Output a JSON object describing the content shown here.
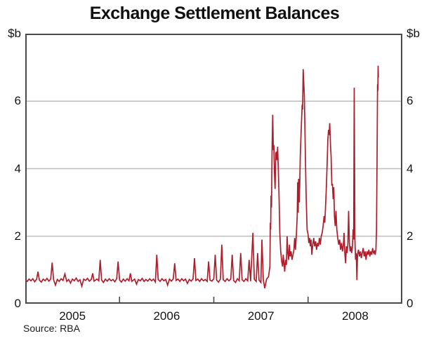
{
  "chart_data": {
    "type": "line",
    "title": "Exchange Settlement Balances",
    "unit_left": "$b",
    "unit_right": "$b",
    "source": "Source: RBA",
    "x_range": [
      2005.0,
      2009.0
    ],
    "ylim": [
      0,
      8
    ],
    "y_ticks": [
      0,
      2,
      4,
      6
    ],
    "x_year_boundary_ticks": [
      2006,
      2007,
      2008
    ],
    "x_tick_labels": [
      {
        "label": "2005",
        "x": 2005.5
      },
      {
        "label": "2006",
        "x": 2006.5
      },
      {
        "label": "2007",
        "x": 2007.5
      },
      {
        "label": "2008",
        "x": 2008.5
      }
    ],
    "grid_on": true,
    "legend": "none",
    "line_color": "#b01e2c",
    "grid_color": "#bdbdbd",
    "frame_color": "#4a4a4a",
    "series": [
      {
        "name": "Exchange Settlement balances ($b, daily)",
        "points": [
          [
            2005.0,
            0.72
          ],
          [
            2005.02,
            0.66
          ],
          [
            2005.04,
            0.73
          ],
          [
            2005.06,
            0.68
          ],
          [
            2005.08,
            0.74
          ],
          [
            2005.1,
            0.65
          ],
          [
            2005.12,
            0.72
          ],
          [
            2005.135,
            0.95
          ],
          [
            2005.15,
            0.7
          ],
          [
            2005.17,
            0.64
          ],
          [
            2005.19,
            0.73
          ],
          [
            2005.21,
            0.68
          ],
          [
            2005.23,
            0.75
          ],
          [
            2005.25,
            0.67
          ],
          [
            2005.27,
            0.73
          ],
          [
            2005.285,
            1.22
          ],
          [
            2005.3,
            0.71
          ],
          [
            2005.32,
            0.55
          ],
          [
            2005.34,
            0.72
          ],
          [
            2005.36,
            0.66
          ],
          [
            2005.38,
            0.74
          ],
          [
            2005.4,
            0.69
          ],
          [
            2005.42,
            0.88
          ],
          [
            2005.44,
            0.66
          ],
          [
            2005.46,
            0.72
          ],
          [
            2005.48,
            0.61
          ],
          [
            2005.5,
            0.73
          ],
          [
            2005.52,
            0.68
          ],
          [
            2005.54,
            0.76
          ],
          [
            2005.56,
            0.66
          ],
          [
            2005.58,
            0.71
          ],
          [
            2005.6,
            0.52
          ],
          [
            2005.62,
            0.73
          ],
          [
            2005.64,
            0.69
          ],
          [
            2005.66,
            0.75
          ],
          [
            2005.68,
            0.67
          ],
          [
            2005.7,
            0.72
          ],
          [
            2005.715,
            0.9
          ],
          [
            2005.73,
            0.67
          ],
          [
            2005.76,
            0.73
          ],
          [
            2005.78,
            0.68
          ],
          [
            2005.795,
            1.3
          ],
          [
            2005.81,
            0.7
          ],
          [
            2005.83,
            0.63
          ],
          [
            2005.85,
            0.73
          ],
          [
            2005.87,
            0.67
          ],
          [
            2005.89,
            0.74
          ],
          [
            2005.91,
            0.68
          ],
          [
            2005.93,
            0.72
          ],
          [
            2005.95,
            0.65
          ],
          [
            2005.97,
            0.74
          ],
          [
            2005.985,
            1.25
          ],
          [
            2006.0,
            0.7
          ],
          [
            2006.02,
            0.64
          ],
          [
            2006.04,
            0.73
          ],
          [
            2006.06,
            0.67
          ],
          [
            2006.08,
            0.74
          ],
          [
            2006.1,
            0.68
          ],
          [
            2006.115,
            0.9
          ],
          [
            2006.13,
            0.66
          ],
          [
            2006.16,
            0.73
          ],
          [
            2006.18,
            0.58
          ],
          [
            2006.2,
            0.72
          ],
          [
            2006.22,
            0.68
          ],
          [
            2006.24,
            0.75
          ],
          [
            2006.26,
            0.66
          ],
          [
            2006.28,
            0.72
          ],
          [
            2006.3,
            0.67
          ],
          [
            2006.32,
            0.74
          ],
          [
            2006.34,
            0.68
          ],
          [
            2006.36,
            0.73
          ],
          [
            2006.38,
            0.64
          ],
          [
            2006.395,
            1.45
          ],
          [
            2006.41,
            0.72
          ],
          [
            2006.43,
            0.66
          ],
          [
            2006.45,
            0.74
          ],
          [
            2006.47,
            0.68
          ],
          [
            2006.49,
            0.72
          ],
          [
            2006.51,
            0.55
          ],
          [
            2006.53,
            0.73
          ],
          [
            2006.55,
            0.67
          ],
          [
            2006.57,
            0.74
          ],
          [
            2006.585,
            1.2
          ],
          [
            2006.6,
            0.69
          ],
          [
            2006.62,
            0.73
          ],
          [
            2006.64,
            0.66
          ],
          [
            2006.66,
            0.74
          ],
          [
            2006.68,
            0.68
          ],
          [
            2006.7,
            0.73
          ],
          [
            2006.72,
            0.6
          ],
          [
            2006.74,
            0.72
          ],
          [
            2006.76,
            0.67
          ],
          [
            2006.78,
            0.74
          ],
          [
            2006.795,
            1.35
          ],
          [
            2006.81,
            0.69
          ],
          [
            2006.83,
            0.73
          ],
          [
            2006.85,
            0.66
          ],
          [
            2006.87,
            0.74
          ],
          [
            2006.89,
            0.68
          ],
          [
            2006.91,
            0.72
          ],
          [
            2006.93,
            0.66
          ],
          [
            2006.945,
            1.25
          ],
          [
            2006.96,
            0.7
          ],
          [
            2006.98,
            0.67
          ],
          [
            2007.0,
            0.74
          ],
          [
            2007.015,
            1.45
          ],
          [
            2007.03,
            0.7
          ],
          [
            2007.05,
            0.64
          ],
          [
            2007.07,
            0.73
          ],
          [
            2007.085,
            1.75
          ],
          [
            2007.1,
            0.71
          ],
          [
            2007.12,
            0.66
          ],
          [
            2007.14,
            0.74
          ],
          [
            2007.16,
            0.68
          ],
          [
            2007.18,
            0.73
          ],
          [
            2007.195,
            1.45
          ],
          [
            2007.21,
            0.69
          ],
          [
            2007.23,
            0.63
          ],
          [
            2007.25,
            0.74
          ],
          [
            2007.27,
            0.68
          ],
          [
            2007.285,
            1.5
          ],
          [
            2007.3,
            0.71
          ],
          [
            2007.32,
            0.66
          ],
          [
            2007.34,
            0.74
          ],
          [
            2007.36,
            0.68
          ],
          [
            2007.375,
            1.3
          ],
          [
            2007.39,
            0.67
          ],
          [
            2007.415,
            2.1
          ],
          [
            2007.43,
            0.72
          ],
          [
            2007.45,
            0.66
          ],
          [
            2007.465,
            1.5
          ],
          [
            2007.48,
            0.7
          ],
          [
            2007.5,
            0.63
          ],
          [
            2007.51,
            1.9
          ],
          [
            2007.525,
            0.72
          ],
          [
            2007.54,
            0.46
          ],
          [
            2007.56,
            0.73
          ],
          [
            2007.58,
            0.8
          ],
          [
            2007.595,
            1.1
          ],
          [
            2007.6,
            2.4
          ],
          [
            2007.603,
            2.2
          ],
          [
            2007.607,
            3.2
          ],
          [
            2007.612,
            2.85
          ],
          [
            2007.618,
            4.6
          ],
          [
            2007.625,
            5.6
          ],
          [
            2007.632,
            4.55
          ],
          [
            2007.637,
            4.7
          ],
          [
            2007.643,
            3.9
          ],
          [
            2007.65,
            3.4
          ],
          [
            2007.657,
            4.45
          ],
          [
            2007.664,
            4.5
          ],
          [
            2007.67,
            4.25
          ],
          [
            2007.677,
            4.65
          ],
          [
            2007.685,
            3.9
          ],
          [
            2007.692,
            3.2
          ],
          [
            2007.7,
            2.1
          ],
          [
            2007.71,
            1.55
          ],
          [
            2007.72,
            1.25
          ],
          [
            2007.73,
            1.1
          ],
          [
            2007.737,
            1.45
          ],
          [
            2007.744,
            1.2
          ],
          [
            2007.752,
            0.95
          ],
          [
            2007.76,
            1.3
          ],
          [
            2007.77,
            1.15
          ],
          [
            2007.778,
            2.0
          ],
          [
            2007.786,
            1.5
          ],
          [
            2007.794,
            1.3
          ],
          [
            2007.802,
            1.75
          ],
          [
            2007.81,
            1.4
          ],
          [
            2007.82,
            1.55
          ],
          [
            2007.83,
            1.3
          ],
          [
            2007.84,
            1.45
          ],
          [
            2007.85,
            1.6
          ],
          [
            2007.858,
            1.95
          ],
          [
            2007.866,
            1.6
          ],
          [
            2007.875,
            2.0
          ],
          [
            2007.885,
            2.6
          ],
          [
            2007.89,
            3.6
          ],
          [
            2007.895,
            2.7
          ],
          [
            2007.9,
            3.7
          ],
          [
            2007.906,
            3.0
          ],
          [
            2007.912,
            3.55
          ],
          [
            2007.918,
            4.4
          ],
          [
            2007.925,
            5.0
          ],
          [
            2007.932,
            5.5
          ],
          [
            2007.938,
            5.9
          ],
          [
            2007.942,
            5.75
          ],
          [
            2007.948,
            6.95
          ],
          [
            2007.954,
            6.55
          ],
          [
            2007.96,
            6.2
          ],
          [
            2007.965,
            5.4
          ],
          [
            2007.972,
            4.3
          ],
          [
            2007.98,
            3.1
          ],
          [
            2007.99,
            2.2
          ],
          [
            2008.0,
            2.05
          ],
          [
            2008.008,
            1.8
          ],
          [
            2008.016,
            1.95
          ],
          [
            2008.024,
            1.7
          ],
          [
            2008.032,
            1.9
          ],
          [
            2008.04,
            1.45
          ],
          [
            2008.05,
            1.75
          ],
          [
            2008.06,
            1.95
          ],
          [
            2008.07,
            1.7
          ],
          [
            2008.08,
            1.85
          ],
          [
            2008.09,
            1.6
          ],
          [
            2008.1,
            1.8
          ],
          [
            2008.11,
            1.7
          ],
          [
            2008.12,
            1.95
          ],
          [
            2008.13,
            1.75
          ],
          [
            2008.14,
            2.0
          ],
          [
            2008.15,
            2.1
          ],
          [
            2008.16,
            2.3
          ],
          [
            2008.17,
            2.6
          ],
          [
            2008.178,
            2.4
          ],
          [
            2008.186,
            2.9
          ],
          [
            2008.195,
            3.5
          ],
          [
            2008.203,
            4.2
          ],
          [
            2008.21,
            4.85
          ],
          [
            2008.217,
            5.15
          ],
          [
            2008.223,
            5.0
          ],
          [
            2008.23,
            5.35
          ],
          [
            2008.238,
            4.7
          ],
          [
            2008.245,
            4.35
          ],
          [
            2008.252,
            3.5
          ],
          [
            2008.259,
            3.55
          ],
          [
            2008.266,
            3.1
          ],
          [
            2008.273,
            3.45
          ],
          [
            2008.28,
            2.6
          ],
          [
            2008.288,
            2.3
          ],
          [
            2008.296,
            2.75
          ],
          [
            2008.305,
            2.2
          ],
          [
            2008.315,
            1.95
          ],
          [
            2008.325,
            1.75
          ],
          [
            2008.335,
            1.9
          ],
          [
            2008.345,
            1.6
          ],
          [
            2008.355,
            1.8
          ],
          [
            2008.365,
            1.55
          ],
          [
            2008.375,
            1.75
          ],
          [
            2008.382,
            2.1
          ],
          [
            2008.39,
            1.5
          ],
          [
            2008.398,
            1.2
          ],
          [
            2008.406,
            1.7
          ],
          [
            2008.414,
            1.5
          ],
          [
            2008.422,
            1.75
          ],
          [
            2008.43,
            2.75
          ],
          [
            2008.438,
            1.8
          ],
          [
            2008.446,
            1.55
          ],
          [
            2008.454,
            1.7
          ],
          [
            2008.462,
            1.5
          ],
          [
            2008.47,
            1.65
          ],
          [
            2008.478,
            2.2
          ],
          [
            2008.484,
            1.9
          ],
          [
            2008.49,
            6.4
          ],
          [
            2008.497,
            1.9
          ],
          [
            2008.504,
            1.3
          ],
          [
            2008.511,
            1.5
          ],
          [
            2008.518,
            0.7
          ],
          [
            2008.525,
            1.45
          ],
          [
            2008.535,
            1.6
          ],
          [
            2008.545,
            1.4
          ],
          [
            2008.555,
            1.55
          ],
          [
            2008.565,
            1.35
          ],
          [
            2008.575,
            1.5
          ],
          [
            2008.585,
            1.65
          ],
          [
            2008.595,
            1.4
          ],
          [
            2008.605,
            1.55
          ],
          [
            2008.615,
            1.3
          ],
          [
            2008.625,
            1.55
          ],
          [
            2008.635,
            1.45
          ],
          [
            2008.645,
            1.6
          ],
          [
            2008.655,
            1.4
          ],
          [
            2008.665,
            1.55
          ],
          [
            2008.675,
            1.45
          ],
          [
            2008.685,
            1.65
          ],
          [
            2008.695,
            1.5
          ],
          [
            2008.705,
            1.55
          ],
          [
            2008.712,
            1.45
          ],
          [
            2008.72,
            1.6
          ],
          [
            2008.726,
            2.2
          ],
          [
            2008.732,
            4.2
          ],
          [
            2008.737,
            6.5
          ],
          [
            2008.74,
            6.3
          ],
          [
            2008.743,
            7.05
          ],
          [
            2008.746,
            6.7
          ]
        ]
      }
    ]
  }
}
